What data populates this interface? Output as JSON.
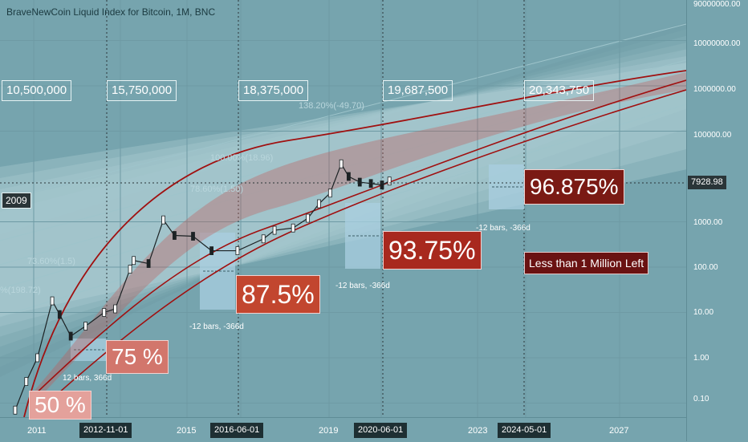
{
  "chart_data": {
    "type": "candlestick",
    "title": "BraveNewCoin Liquid Index for Bitcoin, 1M, BNC",
    "y_scale": "log",
    "ylim": [
      0.05,
      90000000
    ],
    "y_ticks": [
      "90000000.00",
      "10000000.00",
      "1000000.00",
      "100000.00",
      "7928.98",
      "1000.00",
      "100.00",
      "10.00",
      "1.00",
      "0.10"
    ],
    "x_ticks": [
      "2011",
      "2012-11-01",
      "2015",
      "2016-06-01",
      "2019",
      "2020-06-01",
      "2023",
      "2024-05-01",
      "2027"
    ],
    "current_price": "7928.98",
    "year_flag": "2009",
    "supply_milestones": [
      "10,500,000",
      "15,750,000",
      "18,375,000",
      "19,687,500",
      "20,343,750"
    ],
    "halving_percentages": [
      "50 %",
      "75 %",
      "87.5%",
      "93.75%",
      "96.875%"
    ],
    "projection_labels": [
      "12 bars, 366d",
      "-12 bars, -366d",
      "-12 bars, -366d",
      "-12 bars, -366d"
    ],
    "fib_labels": [
      "138.20%(-49.70)",
      "100.00%(18.96)",
      "78.60%(1.50)",
      "73.60%(1.5)",
      "%(198.72)"
    ],
    "note": "Less than 1 Million Left",
    "series": [
      {
        "name": "price",
        "x": [
          "2010-08",
          "2010-11",
          "2011-02",
          "2011-06",
          "2011-08",
          "2011-11",
          "2012-03",
          "2012-08",
          "2012-11",
          "2013-03",
          "2013-04",
          "2013-08",
          "2013-12",
          "2014-03",
          "2014-08",
          "2015-01",
          "2015-08",
          "2016-03",
          "2016-06",
          "2016-11",
          "2017-03",
          "2017-06",
          "2017-09",
          "2017-12",
          "2018-02",
          "2018-05",
          "2018-08",
          "2018-11",
          "2019-01"
        ],
        "y": [
          0.07,
          0.3,
          1,
          18,
          9,
          3,
          5,
          10,
          12,
          90,
          140,
          120,
          1100,
          500,
          480,
          230,
          230,
          420,
          650,
          730,
          1200,
          2500,
          4300,
          19000,
          10000,
          7500,
          7000,
          6500,
          7928.98
        ]
      }
    ],
    "colors": {
      "band_line": "#a01010",
      "projection": "#a9cfe0",
      "pct_dark": "#7a1a14",
      "pct_mid": "#b33a2a",
      "pct_light": "#d9786f"
    }
  }
}
